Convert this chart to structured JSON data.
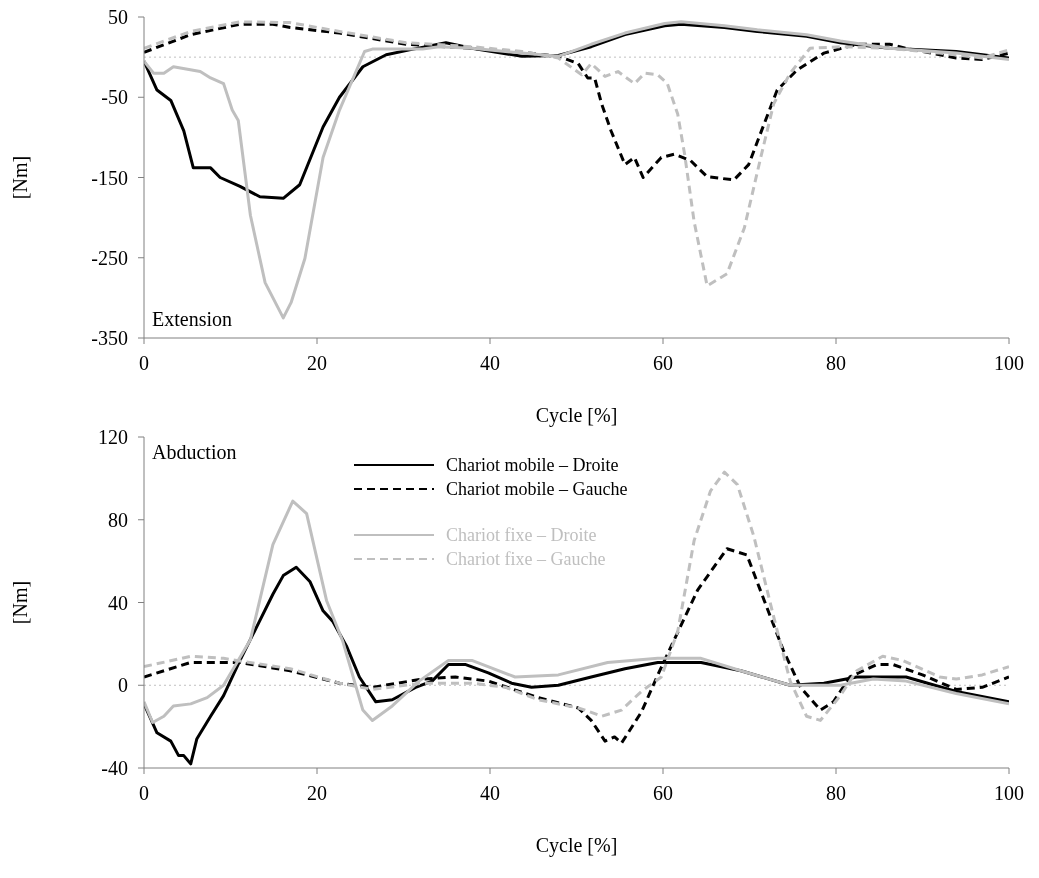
{
  "chart_data": [
    {
      "type": "line",
      "xlabel": "Cycle [%]",
      "ylabel": "[Nm]",
      "xlim": [
        0,
        100
      ],
      "xticks": [
        0,
        20,
        40,
        60,
        80,
        100
      ],
      "ylim": [
        -350,
        50
      ],
      "yticks": [
        -350,
        -250,
        -150,
        -50,
        50
      ],
      "grid": false,
      "legend": false,
      "annotations": [
        "Extension"
      ],
      "ref_lines": [
        {
          "axis": "y",
          "value": 0,
          "color": "#c0c0c0",
          "line_style": "dotted"
        }
      ],
      "series": [
        {
          "color": "#000000",
          "line_style": "solid",
          "x": [
            0,
            1.5,
            3.1,
            4.6,
            5.7,
            7.7,
            8.8,
            11.1,
            13.4,
            16.1,
            18,
            20.7,
            22.6,
            25.3,
            28,
            30.7,
            34.9,
            37.9,
            43.7,
            47.9,
            51.7,
            55.6,
            60.2,
            62.1,
            67.1,
            70.9,
            76.6,
            80.5,
            86.2,
            93.9,
            100
          ],
          "values": [
            -5,
            -41,
            -54,
            -92,
            -138,
            -138,
            -150,
            -161,
            -174,
            -176,
            -159,
            -87,
            -50,
            -12,
            3,
            9,
            18,
            11,
            1,
            2,
            13,
            28,
            39,
            41,
            37,
            32,
            26,
            18,
            11,
            7,
            -1
          ]
        },
        {
          "color": "#000000",
          "line_style": "dashed",
          "x": [
            0,
            5.4,
            11.1,
            14.9,
            16.9,
            22.6,
            30.3,
            37.9,
            43.7,
            47.9,
            50.2,
            51.3,
            52.1,
            52.9,
            54,
            55.6,
            56.7,
            57.7,
            59.8,
            61.3,
            63.2,
            65.1,
            68.2,
            69.9,
            71.7,
            73.2,
            75.5,
            78.6,
            82.4,
            86.2,
            88.1,
            93.9,
            96.9,
            100
          ],
          "values": [
            6,
            28,
            41,
            41,
            37,
            30,
            16,
            11,
            6,
            1,
            -8,
            -26,
            -26,
            -58,
            -92,
            -134,
            -125,
            -150,
            -125,
            -121,
            -129,
            -149,
            -153,
            -134,
            -83,
            -41,
            -16,
            5,
            16,
            16,
            11,
            -1,
            -3,
            5
          ]
        },
        {
          "color": "#bfbfbf",
          "line_style": "solid",
          "x": [
            0,
            1.1,
            2.3,
            3.4,
            6.5,
            7.7,
            9.2,
            10.2,
            10.9,
            12.3,
            14,
            16.1,
            17,
            18.6,
            20.7,
            22.6,
            25.5,
            26.4,
            32.2,
            34.1,
            37.9,
            41.8,
            47.9,
            51.7,
            55.6,
            60.2,
            62.1,
            67.1,
            70.9,
            76.6,
            80.5,
            86.2,
            93.9,
            100
          ],
          "values": [
            -5,
            -20,
            -20,
            -12,
            -18,
            -26,
            -33,
            -66,
            -79,
            -197,
            -281,
            -325,
            -306,
            -251,
            -125,
            -66,
            7,
            10,
            10,
            13,
            11,
            7,
            1,
            16,
            30,
            42,
            44,
            39,
            34,
            28,
            20,
            11,
            5,
            -3
          ]
        },
        {
          "color": "#bfbfbf",
          "line_style": "dashed",
          "x": [
            0,
            5.4,
            11.1,
            16.9,
            22.6,
            30.3,
            37.9,
            43.7,
            47.9,
            50.6,
            51.7,
            53.3,
            54.8,
            56.7,
            57.9,
            59.4,
            60.5,
            61.7,
            62.5,
            63.6,
            65.1,
            67.4,
            69.4,
            71.3,
            72.8,
            74.7,
            77,
            80.5,
            86.2,
            92,
            96.9,
            100
          ],
          "values": [
            11,
            32,
            44,
            43,
            32,
            18,
            13,
            7,
            -1,
            -22,
            -8,
            -24,
            -18,
            -33,
            -20,
            -22,
            -33,
            -71,
            -121,
            -205,
            -285,
            -270,
            -213,
            -125,
            -58,
            -20,
            11,
            13,
            11,
            5,
            -1,
            9
          ]
        }
      ]
    },
    {
      "type": "line",
      "xlabel": "Cycle [%]",
      "ylabel": "[Nm]",
      "xlim": [
        0,
        100
      ],
      "xticks": [
        0,
        20,
        40,
        60,
        80,
        100
      ],
      "ylim": [
        -40,
        120
      ],
      "yticks": [
        -40,
        0,
        40,
        80,
        120
      ],
      "grid": false,
      "legend": "top",
      "annotations": [
        "Abduction"
      ],
      "ref_lines": [
        {
          "axis": "y",
          "value": 0,
          "color": "#c0c0c0",
          "line_style": "dotted"
        }
      ],
      "series": [
        {
          "name": "Chariot mobile – Droite",
          "color": "#000000",
          "line_style": "solid",
          "x": [
            0,
            1.5,
            3.1,
            4,
            4.6,
            5.4,
            6.1,
            7.7,
            9.2,
            11.1,
            13,
            14.9,
            16.1,
            17.6,
            19.2,
            20.7,
            21.8,
            23.4,
            24.9,
            26.8,
            28.7,
            31.4,
            33.3,
            35.2,
            37.2,
            39.8,
            42.5,
            44.8,
            47.9,
            51.7,
            55.6,
            59.4,
            64.4,
            69,
            74.7,
            78.6,
            82.4,
            88.1,
            93.9,
            100
          ],
          "values": [
            -9,
            -23,
            -27,
            -34,
            -34,
            -38,
            -26,
            -15,
            -5,
            12,
            28,
            44,
            53,
            57,
            50,
            36,
            31,
            19,
            4,
            -8,
            -7,
            -1,
            2,
            10,
            10,
            6,
            1,
            -1,
            0,
            4,
            8,
            11,
            11,
            7,
            0,
            1,
            4,
            4,
            -3,
            -8
          ]
        },
        {
          "name": "Chariot mobile – Gauche",
          "color": "#000000",
          "line_style": "dashed",
          "x": [
            0,
            5.4,
            11.1,
            16.9,
            22.6,
            26.4,
            32.2,
            36,
            39.8,
            45.6,
            50.2,
            51.7,
            53.3,
            54.4,
            55.2,
            57.5,
            59.4,
            61.3,
            64,
            67.4,
            69.7,
            71.7,
            73.9,
            75.9,
            78.2,
            79.7,
            81.6,
            84.7,
            86.6,
            90,
            93.9,
            96.9,
            100
          ],
          "values": [
            4,
            11,
            11,
            7,
            1,
            -1,
            3,
            4,
            2,
            -6,
            -11,
            -17,
            -27,
            -25,
            -28,
            -13,
            5,
            22,
            46,
            66,
            63,
            41,
            17,
            -1,
            -12,
            -8,
            4,
            10,
            10,
            5,
            -2,
            -1,
            4
          ]
        },
        {
          "name": "Chariot fixe – Droite",
          "color": "#bfbfbf",
          "line_style": "solid",
          "x": [
            0,
            1,
            2.3,
            3.4,
            5.4,
            7.3,
            9.2,
            12.3,
            14.9,
            17.2,
            18.8,
            21.1,
            23,
            25.3,
            26.4,
            28.7,
            31.8,
            35.2,
            37.9,
            42.9,
            47.9,
            53.6,
            59.4,
            64.4,
            69,
            74.7,
            80.5,
            84.3,
            88.1,
            93.9,
            100
          ],
          "values": [
            -8,
            -18,
            -15,
            -10,
            -9,
            -6,
            0,
            22,
            68,
            89,
            83,
            41,
            21,
            -12,
            -17,
            -10,
            2,
            12,
            12,
            4,
            5,
            11,
            13,
            13,
            7,
            0,
            0,
            3,
            2,
            -4,
            -9
          ]
        },
        {
          "name": "Chariot fixe – Gauche",
          "color": "#bfbfbf",
          "line_style": "dashed",
          "x": [
            0,
            5.4,
            9.2,
            16.9,
            22.6,
            26.4,
            32.2,
            37.9,
            41.8,
            45.6,
            50.2,
            51,
            52.9,
            55.2,
            57.5,
            59.8,
            61.7,
            63.6,
            65.5,
            67.1,
            68.6,
            70.5,
            72.8,
            74.7,
            76.6,
            78.2,
            80.5,
            82.4,
            85.4,
            87.7,
            92,
            93.9,
            96.9,
            100
          ],
          "values": [
            9,
            14,
            13,
            8,
            1,
            -2,
            1,
            1,
            -1,
            -7,
            -11,
            -12,
            -15,
            -12,
            -3,
            4,
            26,
            70,
            94,
            103,
            97,
            72,
            33,
            2,
            -15,
            -17,
            -5,
            7,
            14,
            12,
            4,
            3,
            5,
            9
          ]
        }
      ]
    }
  ]
}
